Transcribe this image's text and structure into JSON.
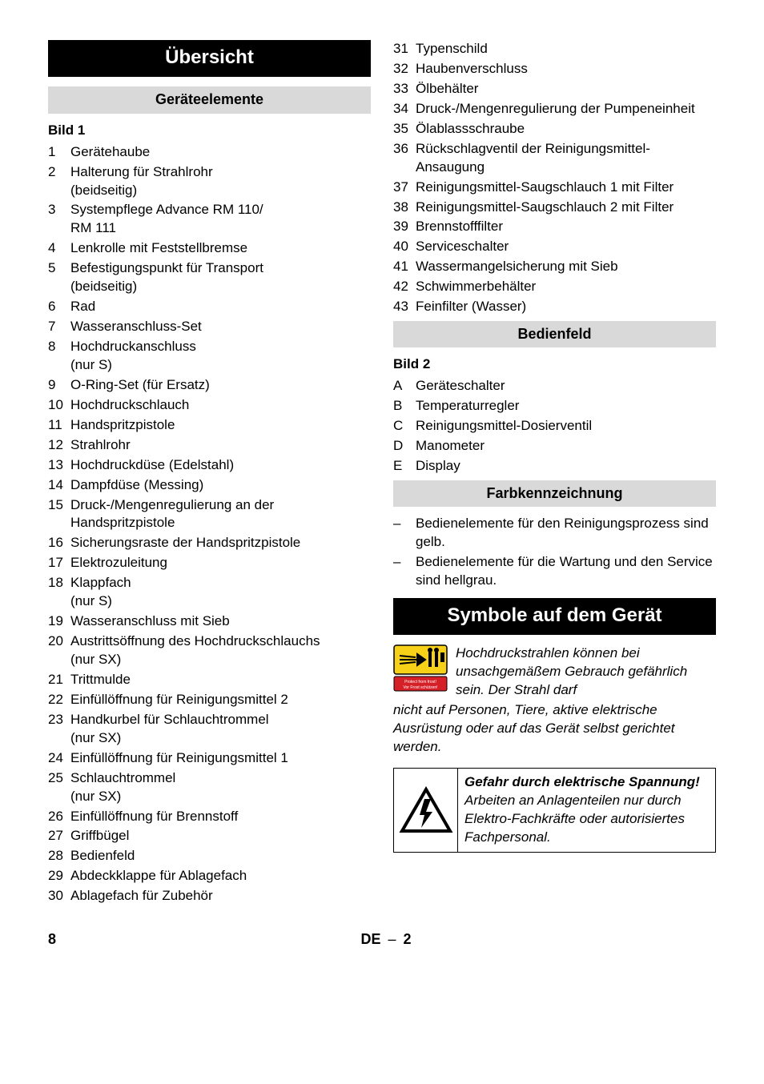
{
  "colors": {
    "black_bg": "#000000",
    "grey_bg": "#d9d9d9",
    "text": "#000000",
    "page_bg": "#ffffff",
    "pictogram_yellow": "#f7d117",
    "pictogram_red": "#d62028"
  },
  "typography": {
    "body_fontsize": 17,
    "section_black_fontsize": 24,
    "section_grey_fontsize": 18
  },
  "left": {
    "title_black": "Übersicht",
    "title_grey": "Geräteelemente",
    "bild_label": "Bild 1",
    "items": [
      {
        "n": "1",
        "t": "Gerätehaube"
      },
      {
        "n": "2",
        "t": "Halterung für Strahlrohr\n(beidseitig)"
      },
      {
        "n": "3",
        "t": "Systempflege Advance RM 110/\nRM 111"
      },
      {
        "n": "4",
        "t": "Lenkrolle mit Feststellbremse"
      },
      {
        "n": "5",
        "t": "Befestigungspunkt für Transport\n(beidseitig)"
      },
      {
        "n": "6",
        "t": "Rad"
      },
      {
        "n": "7",
        "t": "Wasseranschluss-Set"
      },
      {
        "n": "8",
        "t": "Hochdruckanschluss\n(nur S)"
      },
      {
        "n": "9",
        "t": "O-Ring-Set (für Ersatz)"
      },
      {
        "n": "10",
        "t": "Hochdruckschlauch"
      },
      {
        "n": "11",
        "t": "Handspritzpistole"
      },
      {
        "n": "12",
        "t": "Strahlrohr"
      },
      {
        "n": "13",
        "t": "Hochdruckdüse (Edelstahl)"
      },
      {
        "n": "14",
        "t": "Dampfdüse (Messing)"
      },
      {
        "n": "15",
        "t": "Druck-/Mengenregulierung an der Handspritzpistole"
      },
      {
        "n": "16",
        "t": "Sicherungsraste der Handspritzpistole"
      },
      {
        "n": "17",
        "t": "Elektrozuleitung"
      },
      {
        "n": "18",
        "t": "Klappfach\n(nur S)"
      },
      {
        "n": "19",
        "t": "Wasseranschluss mit Sieb"
      },
      {
        "n": "20",
        "t": "Austrittsöffnung des Hochdruckschlauchs\n(nur SX)"
      },
      {
        "n": "21",
        "t": "Trittmulde"
      },
      {
        "n": "22",
        "t": "Einfüllöffnung für Reinigungsmittel 2"
      },
      {
        "n": "23",
        "t": "Handkurbel für Schlauchtrommel\n(nur SX)"
      },
      {
        "n": "24",
        "t": "Einfüllöffnung für Reinigungsmittel 1"
      },
      {
        "n": "25",
        "t": "Schlauchtrommel\n(nur SX)"
      },
      {
        "n": "26",
        "t": "Einfüllöffnung für Brennstoff"
      },
      {
        "n": "27",
        "t": "Griffbügel"
      },
      {
        "n": "28",
        "t": "Bedienfeld"
      },
      {
        "n": "29",
        "t": "Abdeckklappe für Ablagefach"
      },
      {
        "n": "30",
        "t": "Ablagefach für Zubehör"
      }
    ]
  },
  "right": {
    "items_cont": [
      {
        "n": "31",
        "t": "Typenschild"
      },
      {
        "n": "32",
        "t": "Haubenverschluss"
      },
      {
        "n": "33",
        "t": "Ölbehälter"
      },
      {
        "n": "34",
        "t": "Druck-/Mengenregulierung der Pumpeneinheit"
      },
      {
        "n": "35",
        "t": "Ölablassschraube"
      },
      {
        "n": "36",
        "t": "Rückschlagventil der Reinigungsmittel-Ansaugung"
      },
      {
        "n": "37",
        "t": "Reinigungsmittel-Saugschlauch 1 mit Filter"
      },
      {
        "n": "38",
        "t": "Reinigungsmittel-Saugschlauch 2 mit Filter"
      },
      {
        "n": "39",
        "t": "Brennstofffilter"
      },
      {
        "n": "40",
        "t": "Serviceschalter"
      },
      {
        "n": "41",
        "t": "Wassermangelsicherung mit Sieb"
      },
      {
        "n": "42",
        "t": "Schwimmerbehälter"
      },
      {
        "n": "43",
        "t": "Feinfilter (Wasser)"
      }
    ],
    "title_grey_bedienfeld": "Bedienfeld",
    "bild2_label": "Bild 2",
    "bild2_items": [
      {
        "n": "A",
        "t": "Geräteschalter"
      },
      {
        "n": "B",
        "t": "Temperaturregler"
      },
      {
        "n": "C",
        "t": "Reinigungsmittel-Dosierventil"
      },
      {
        "n": "D",
        "t": "Manometer"
      },
      {
        "n": "E",
        "t": "Display"
      }
    ],
    "title_grey_farb": "Farbkennzeichnung",
    "farb_items": [
      {
        "n": "–",
        "t": "Bedienelemente für den Reinigungsprozess sind gelb."
      },
      {
        "n": "–",
        "t": "Bedienelemente für die Wartung und den Service sind hellgrau."
      }
    ],
    "title_black_symbole": "Symbole auf dem Gerät",
    "symbole_text_wrap": "Hochdruckstrahlen können bei unsachgemäßem Gebrauch gefährlich sein. Der Strahl darf",
    "symbole_text_after": "nicht auf Personen, Tiere, aktive elektrische Ausrüstung oder auf das Gerät selbst gerichtet werden.",
    "warning_title": "Gefahr durch elektrische Spannung!",
    "warning_body": "Arbeiten an Anlagenteilen nur durch Elektro-Fachkräfte oder autorisiertes Fachpersonal."
  },
  "footer": {
    "page": "8",
    "lang": "DE",
    "sep": "–",
    "sub": "2"
  }
}
